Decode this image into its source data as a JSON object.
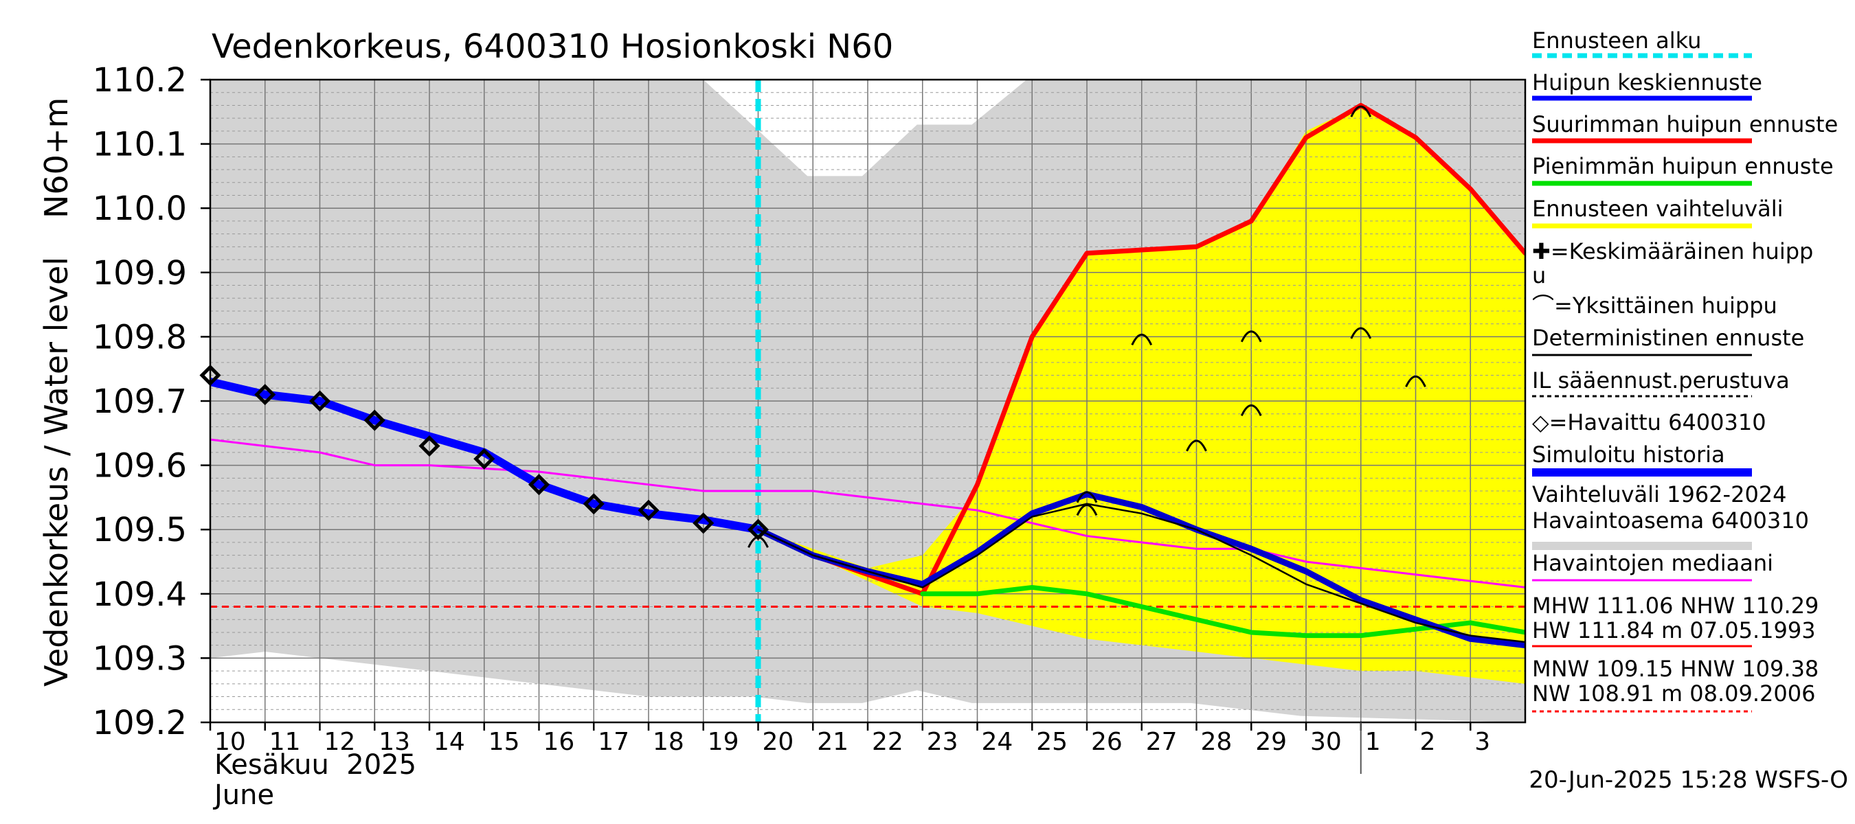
{
  "chart_data": {
    "type": "line",
    "title": "Vedenkorkeus, 6400310 Hosionkoski N60",
    "ylabel": "Vedenkorkeus / Water level",
    "yunit": "N60+m",
    "ylim": [
      109.2,
      110.2
    ],
    "yticks": [
      "109.2",
      "109.3",
      "109.4",
      "109.5",
      "109.6",
      "109.7",
      "109.8",
      "109.9",
      "110.0",
      "110.1",
      "110.2"
    ],
    "xlim": [
      0,
      24
    ],
    "xticks": [
      {
        "x": 0,
        "label": "10"
      },
      {
        "x": 1,
        "label": "11"
      },
      {
        "x": 2,
        "label": "12"
      },
      {
        "x": 3,
        "label": "13"
      },
      {
        "x": 4,
        "label": "14"
      },
      {
        "x": 5,
        "label": "15"
      },
      {
        "x": 6,
        "label": "16"
      },
      {
        "x": 7,
        "label": "17"
      },
      {
        "x": 8,
        "label": "18"
      },
      {
        "x": 9,
        "label": "19"
      },
      {
        "x": 10,
        "label": "20"
      },
      {
        "x": 11,
        "label": "21"
      },
      {
        "x": 12,
        "label": "22"
      },
      {
        "x": 13,
        "label": "23"
      },
      {
        "x": 14,
        "label": "24"
      },
      {
        "x": 15,
        "label": "25"
      },
      {
        "x": 16,
        "label": "26"
      },
      {
        "x": 17,
        "label": "27"
      },
      {
        "x": 18,
        "label": "28"
      },
      {
        "x": 19,
        "label": "29"
      },
      {
        "x": 20,
        "label": "30"
      },
      {
        "x": 21,
        "label": "1"
      },
      {
        "x": 22,
        "label": "2"
      },
      {
        "x": 23,
        "label": "3"
      }
    ],
    "xlabel_month_fi": "Kesäkuu  2025",
    "xlabel_month_en": "June",
    "month_boundary_x": 21,
    "forecast_start_x": 10,
    "reference_level": 109.38,
    "series": [
      {
        "name": "Vaihteluväli 1962-2024",
        "kind": "band",
        "color": "#d3d3d3",
        "upper": [
          [
            0,
            110.2
          ],
          [
            9,
            110.2
          ],
          [
            10.9,
            110.05
          ],
          [
            11.9,
            110.05
          ],
          [
            12.9,
            110.13
          ],
          [
            13.9,
            110.13
          ],
          [
            14.9,
            110.2
          ],
          [
            24,
            110.2
          ],
          [
            24,
            110.09
          ]
        ],
        "lower": [
          [
            0,
            109.3
          ],
          [
            1,
            109.31
          ],
          [
            2,
            109.3
          ],
          [
            4,
            109.28
          ],
          [
            6,
            109.26
          ],
          [
            8,
            109.24
          ],
          [
            9.9,
            109.24
          ],
          [
            10.9,
            109.23
          ],
          [
            11.9,
            109.23
          ],
          [
            12.9,
            109.25
          ],
          [
            13.9,
            109.23
          ],
          [
            17.9,
            109.23
          ],
          [
            19.9,
            109.21
          ],
          [
            24,
            109.2
          ]
        ]
      },
      {
        "name": "Ennusteen vaihteluväli",
        "kind": "band",
        "color": "#ffff00",
        "upper": [
          [
            10,
            109.5
          ],
          [
            12,
            109.44
          ],
          [
            13,
            109.46
          ],
          [
            14,
            109.56
          ],
          [
            15,
            109.8
          ],
          [
            16,
            109.93
          ],
          [
            18,
            109.94
          ],
          [
            19,
            109.98
          ],
          [
            20,
            110.12
          ],
          [
            21,
            110.16
          ],
          [
            22,
            110.11
          ],
          [
            23,
            110.03
          ],
          [
            24,
            109.93
          ]
        ],
        "lower": [
          [
            10,
            109.5
          ],
          [
            12,
            109.42
          ],
          [
            13,
            109.38
          ],
          [
            14,
            109.37
          ],
          [
            15,
            109.35
          ],
          [
            16,
            109.33
          ],
          [
            18,
            109.31
          ],
          [
            19,
            109.3
          ],
          [
            21,
            109.28
          ],
          [
            22,
            109.28
          ],
          [
            23,
            109.27
          ],
          [
            24,
            109.26
          ]
        ]
      },
      {
        "name": "Havaintojen mediaani",
        "kind": "line",
        "color": "#ff00ff",
        "width": 3,
        "points": [
          [
            0,
            109.64
          ],
          [
            2,
            109.62
          ],
          [
            3,
            109.6
          ],
          [
            4,
            109.6
          ],
          [
            6,
            109.59
          ],
          [
            8,
            109.57
          ],
          [
            9,
            109.56
          ],
          [
            11,
            109.56
          ],
          [
            13,
            109.54
          ],
          [
            14,
            109.53
          ],
          [
            15,
            109.51
          ],
          [
            16,
            109.49
          ],
          [
            17,
            109.48
          ],
          [
            18,
            109.47
          ],
          [
            19,
            109.47
          ],
          [
            20,
            109.45
          ],
          [
            21,
            109.44
          ],
          [
            22,
            109.43
          ],
          [
            23,
            109.42
          ],
          [
            24,
            109.41
          ]
        ]
      },
      {
        "name": "Suurimman huipun ennuste",
        "kind": "line",
        "color": "#ff0000",
        "width": 7,
        "points": [
          [
            10,
            109.5
          ],
          [
            11,
            109.46
          ],
          [
            12,
            109.43
          ],
          [
            13,
            109.4
          ],
          [
            14,
            109.57
          ],
          [
            15,
            109.8
          ],
          [
            16,
            109.93
          ],
          [
            17,
            109.935
          ],
          [
            18,
            109.94
          ],
          [
            19,
            109.98
          ],
          [
            20,
            110.11
          ],
          [
            21,
            110.16
          ],
          [
            22,
            110.11
          ],
          [
            23,
            110.03
          ],
          [
            24,
            109.93
          ]
        ]
      },
      {
        "name": "Pienimmän huipun ennuste",
        "kind": "line",
        "color": "#00e000",
        "width": 7,
        "points": [
          [
            13,
            109.4
          ],
          [
            14,
            109.4
          ],
          [
            15,
            109.41
          ],
          [
            16,
            109.4
          ],
          [
            17,
            109.38
          ],
          [
            18,
            109.36
          ],
          [
            19,
            109.34
          ],
          [
            20,
            109.335
          ],
          [
            21,
            109.335
          ],
          [
            22,
            109.345
          ],
          [
            23,
            109.355
          ],
          [
            24,
            109.34
          ]
        ]
      },
      {
        "name": "Simuloitu historia",
        "kind": "line",
        "color": "#0000ff",
        "width": 12,
        "points": [
          [
            0,
            109.73
          ],
          [
            1,
            109.71
          ],
          [
            2,
            109.7
          ],
          [
            3,
            109.67
          ],
          [
            4,
            109.645
          ],
          [
            5,
            109.62
          ],
          [
            6,
            109.57
          ],
          [
            7,
            109.54
          ],
          [
            8,
            109.525
          ],
          [
            9,
            109.515
          ],
          [
            10,
            109.5
          ]
        ]
      },
      {
        "name": "Huipun keskiennuste",
        "kind": "line",
        "color": "#0000cc",
        "width": 9,
        "points": [
          [
            10,
            109.5
          ],
          [
            11,
            109.46
          ],
          [
            12,
            109.435
          ],
          [
            13,
            109.415
          ],
          [
            14,
            109.465
          ],
          [
            15,
            109.525
          ],
          [
            16,
            109.555
          ],
          [
            17,
            109.535
          ],
          [
            18,
            109.5
          ],
          [
            19,
            109.47
          ],
          [
            20,
            109.435
          ],
          [
            21,
            109.39
          ],
          [
            22,
            109.36
          ],
          [
            23,
            109.33
          ],
          [
            24,
            109.32
          ]
        ]
      },
      {
        "name": "Deterministinen ennuste",
        "kind": "line",
        "color": "#000000",
        "width": 2.5,
        "points": [
          [
            10,
            109.5
          ],
          [
            11,
            109.46
          ],
          [
            12,
            109.435
          ],
          [
            13,
            109.41
          ],
          [
            14,
            109.46
          ],
          [
            15,
            109.52
          ],
          [
            16,
            109.54
          ],
          [
            17,
            109.525
          ],
          [
            18,
            109.5
          ],
          [
            19,
            109.46
          ],
          [
            20,
            109.415
          ],
          [
            21,
            109.385
          ],
          [
            22,
            109.355
          ],
          [
            23,
            109.335
          ],
          [
            24,
            109.325
          ]
        ]
      },
      {
        "name": "Havaittu 6400310",
        "kind": "markers",
        "color": "#000000",
        "points": [
          [
            0,
            109.74
          ],
          [
            1,
            109.71
          ],
          [
            2,
            109.7
          ],
          [
            3,
            109.67
          ],
          [
            4,
            109.63
          ],
          [
            5,
            109.61
          ],
          [
            6,
            109.57
          ],
          [
            7,
            109.54
          ],
          [
            8,
            109.53
          ],
          [
            9,
            109.51
          ],
          [
            10,
            109.5
          ]
        ]
      },
      {
        "name": "Yksittäinen huippu",
        "kind": "peaks",
        "color": "#000000",
        "points": [
          [
            16,
            109.555
          ],
          [
            16,
            109.535
          ],
          [
            17,
            109.8
          ],
          [
            18,
            109.635
          ],
          [
            19,
            109.805
          ],
          [
            19,
            109.69
          ],
          [
            21,
            109.81
          ],
          [
            21,
            110.155
          ],
          [
            22,
            109.735
          ],
          [
            10,
            109.485
          ]
        ]
      }
    ],
    "legend": {
      "placement": "right",
      "items": [
        {
          "label": "Ennusteen alku",
          "color": "#00e5ee",
          "style": "dashed",
          "width": 7
        },
        {
          "label": "Huipun keskiennuste",
          "color": "#0000ff",
          "style": "solid",
          "width": 7
        },
        {
          "label": "Suurimman huipun ennuste",
          "color": "#ff0000",
          "style": "solid",
          "width": 7
        },
        {
          "label": "Pienimmän huipun ennuste",
          "color": "#00e000",
          "style": "solid",
          "width": 7
        },
        {
          "label": "Ennusteen vaihteluväli",
          "color": "#ffff00",
          "style": "solid",
          "width": 7
        },
        {
          "label": "✚=Keskimääräinen huipp",
          "label2": "u",
          "color": "",
          "style": "none",
          "width": 0
        },
        {
          "label": "⌒=Yksittäinen huippu",
          "color": "",
          "style": "none",
          "width": 0
        },
        {
          "label": "Deterministinen ennuste",
          "color": "#000000",
          "style": "solid",
          "width": 3
        },
        {
          "label": "IL sääennust.perustuva",
          "color": "#000000",
          "style": "dotted",
          "width": 3
        },
        {
          "label": "◇=Havaittu 6400310",
          "color": "",
          "style": "none",
          "width": 0
        },
        {
          "label": "Simuloitu historia",
          "color": "#0000ff",
          "style": "solid",
          "width": 12
        },
        {
          "label": "Vaihteluväli 1962-2024",
          "label2": " Havaintoasema 6400310",
          "color": "#d3d3d3",
          "style": "solid",
          "width": 12
        },
        {
          "label": "Havaintojen mediaani",
          "color": "#ff00ff",
          "style": "solid",
          "width": 3
        },
        {
          "label": "MHW 111.06 NHW 110.29",
          "label2": "HW 111.84 m 07.05.1993",
          "color": "#ff0000",
          "style": "solid",
          "width": 3
        },
        {
          "label": "MNW 109.15 HNW 109.38",
          "label2": "NW 108.91 m 08.09.2006",
          "color": "#ff0000",
          "style": "dotted",
          "width": 3
        }
      ]
    },
    "timestamp": "20-Jun-2025 15:28 WSFS-O"
  }
}
